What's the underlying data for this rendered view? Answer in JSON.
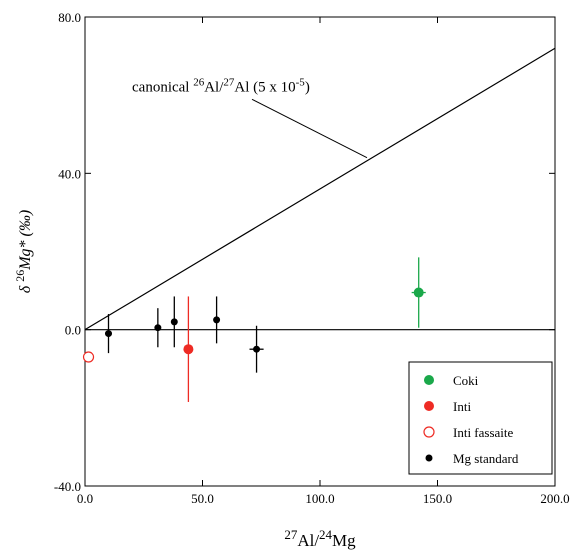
{
  "chart_data": {
    "type": "scatter",
    "title": "",
    "xlabel": {
      "sup": "27",
      "base": "Al/",
      "sup2": "24",
      "base2": "Mg"
    },
    "ylabel": {
      "prefix": "δ ",
      "sup": "26",
      "base": "Mg* (‰)"
    },
    "xlim": [
      0,
      200
    ],
    "ylim": [
      -40,
      80
    ],
    "x_ticks": [
      0,
      50,
      100,
      150,
      200
    ],
    "x_tick_labels": [
      "0.0",
      "50.0",
      "100.0",
      "150.0",
      "200.0"
    ],
    "y_ticks": [
      -40,
      0,
      40,
      80
    ],
    "y_tick_labels": [
      "-40.0",
      "0.0",
      "40.0",
      "80.0"
    ],
    "zero_line": true,
    "reference_line": {
      "slope": 0.36,
      "label_parts": [
        "canonical ",
        "26",
        "Al/",
        "27",
        "Al (5 x 10",
        "-5",
        ")"
      ],
      "label_anchor": {
        "x": 20,
        "y": 61
      },
      "leader_to": {
        "x": 120,
        "y": 44
      }
    },
    "series": [
      {
        "name": "Coki",
        "color": "#1aa84a",
        "marker": "filled",
        "points": [
          {
            "x": 142,
            "y": 9.5,
            "xerr": 3,
            "yerr": 9
          }
        ]
      },
      {
        "name": "Inti",
        "color": "#ee2b24",
        "marker": "filled",
        "points": [
          {
            "x": 44,
            "y": -5,
            "xerr": 0,
            "yerr": 13.5
          }
        ]
      },
      {
        "name": "Inti fassaite",
        "color": "#ee2b24",
        "marker": "open",
        "points": [
          {
            "x": 1.5,
            "y": -7,
            "xerr": 0,
            "yerr": 0
          }
        ]
      },
      {
        "name": "Mg standard",
        "color": "#000000",
        "marker": "filled",
        "points": [
          {
            "x": 10,
            "y": -1,
            "xerr": 0,
            "yerr": 5
          },
          {
            "x": 31,
            "y": 0.5,
            "xerr": 0,
            "yerr": 5
          },
          {
            "x": 38,
            "y": 2,
            "xerr": 0,
            "yerr": 6.5
          },
          {
            "x": 56,
            "y": 2.5,
            "xerr": 0,
            "yerr": 6
          },
          {
            "x": 73,
            "y": -5,
            "xerr": 3,
            "yerr": 6
          }
        ]
      }
    ],
    "legend": {
      "placement": "bottom-right"
    }
  }
}
